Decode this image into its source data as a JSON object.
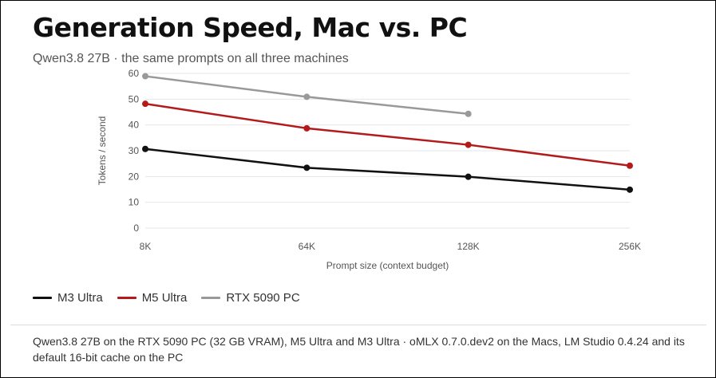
{
  "colors": {
    "m3": "#111111",
    "m5": "#b31b1b",
    "rtx": "#999999",
    "grid": "#e6e6e6"
  },
  "legend": [
    {
      "label": "M3 Ultra",
      "color": "#111111"
    },
    {
      "label": "M5 Ultra",
      "color": "#b31b1b"
    },
    {
      "label": "RTX 5090 PC",
      "color": "#999999"
    }
  ],
  "footnote": "Qwen3.8 27B on the RTX 5090 PC (32 GB VRAM), M5 Ultra and M3 Ultra · oMLX 0.7.0.dev2 on the Macs, LM Studio 0.4.24 and its default 16-bit cache on the PC",
  "chart_data": {
    "type": "line",
    "title": "Generation Speed, Mac vs. PC",
    "subtitle": "Qwen3.8 27B · the same prompts on all three machines",
    "xlabel": "Prompt size (context budget)",
    "ylabel": "Tokens / second",
    "categories": [
      "8K",
      "64K",
      "128K",
      "256K"
    ],
    "ylim": [
      0,
      60
    ],
    "yticks": [
      0,
      10,
      20,
      30,
      40,
      50,
      60
    ],
    "grid": true,
    "legend_position": "bottom-left",
    "series": [
      {
        "name": "M3 Ultra",
        "color": "#111111",
        "values": [
          30.7,
          23.4,
          19.9,
          14.9
        ]
      },
      {
        "name": "M5 Ultra",
        "color": "#b31b1b",
        "values": [
          48.2,
          38.7,
          32.3,
          24.2
        ]
      },
      {
        "name": "RTX 5090 PC",
        "color": "#999999",
        "values": [
          58.9,
          50.9,
          44.3,
          null
        ]
      }
    ]
  }
}
